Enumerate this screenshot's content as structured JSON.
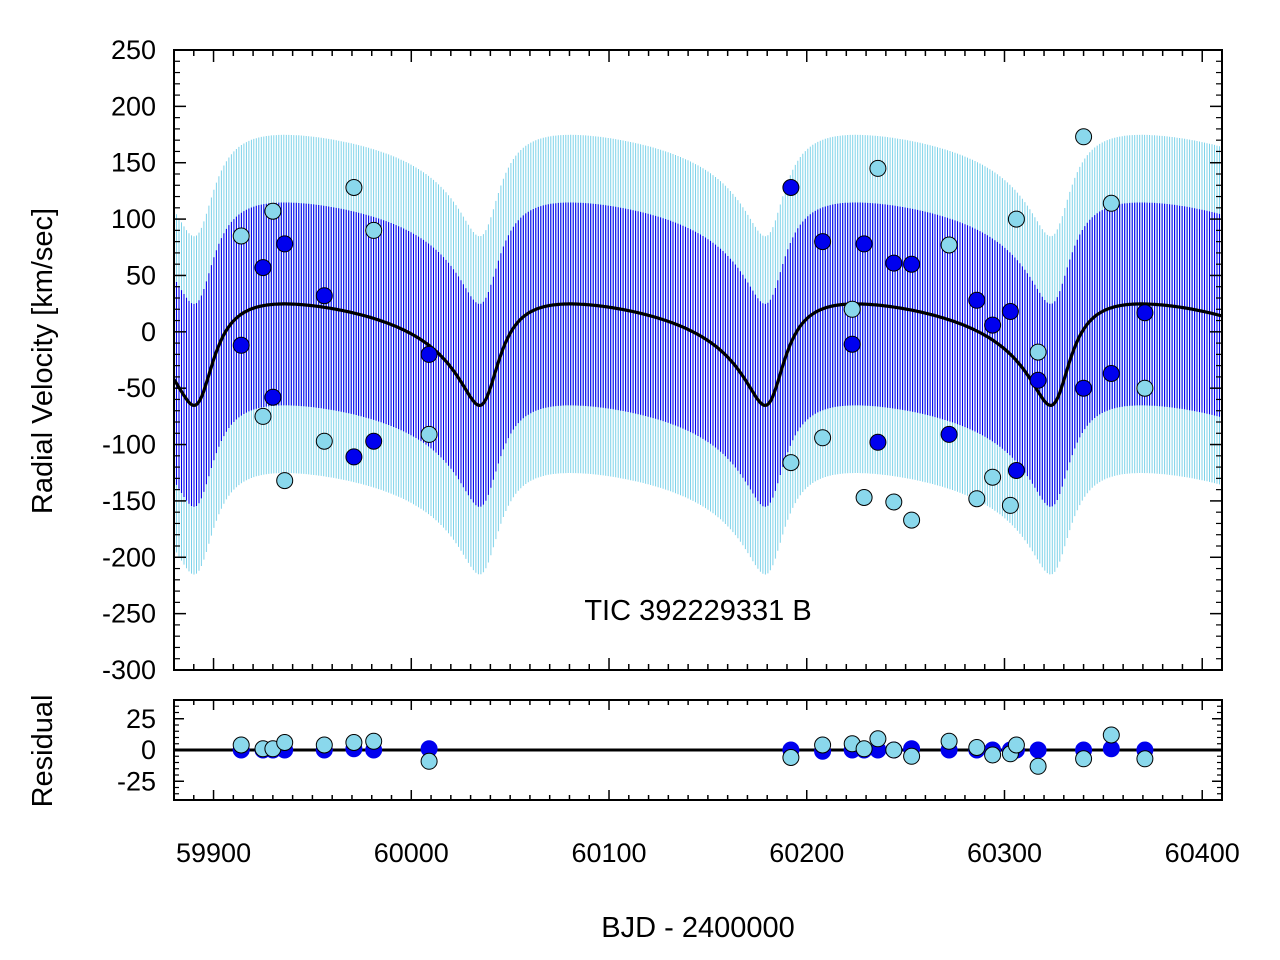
{
  "chart_data": [
    {
      "type": "scatter",
      "panel": "radial-velocity",
      "title": "",
      "annotation": "TIC 392229331 B",
      "xlabel": "BJD - 2400000",
      "ylabel": "Radial Velocity [km/sec]",
      "xlim": [
        59880,
        60410
      ],
      "ylim": [
        -300,
        250
      ],
      "xticks": [
        59900,
        60000,
        60100,
        60200,
        60300,
        60400
      ],
      "yticks": [
        250,
        200,
        150,
        100,
        50,
        0,
        -50,
        -100,
        -150,
        -200,
        -250,
        -300
      ],
      "colors": {
        "inner_band": "#0000ee",
        "outer_band": "#7fd3ea",
        "model_line": "#000000",
        "primary_fill": "#0000ee",
        "secondary_fill": "#8ad8ec",
        "marker_edge": "#000000"
      },
      "model": {
        "name": "orbit model",
        "orbital_period_days": 144.4,
        "eccentricity": 0.52,
        "periastron_time": 59893.5,
        "argument_of_periastron_deg": 210,
        "semi_amplitude_km_s": 45,
        "systemic_velocity_km_s": 0,
        "peak_velocity_km_s": 45,
        "minimum_velocity_km_s": -45,
        "inner_band_halfwidth_km_s": 90,
        "outer_band_halfwidth_km_s": 150,
        "inner_orbit_period_days": 2.3
      },
      "series": [
        {
          "name": "primary",
          "x": [
            59914,
            59925,
            59930,
            59936,
            59956,
            59971,
            59981,
            60009,
            60192,
            60208,
            60223,
            60229,
            60236,
            60244,
            60253,
            60272,
            60286,
            60294,
            60303,
            60306,
            60317,
            60340,
            60354,
            60371
          ],
          "y": [
            -12,
            57,
            -58,
            78,
            32,
            -111,
            -97,
            -20,
            128,
            80,
            -11,
            78,
            -98,
            61,
            60,
            -91,
            28,
            6,
            18,
            -123,
            -43,
            -50,
            -37,
            17
          ]
        },
        {
          "name": "secondary",
          "x": [
            59914,
            59925,
            59930,
            59936,
            59956,
            59971,
            59981,
            60009,
            60192,
            60208,
            60223,
            60229,
            60236,
            60244,
            60253,
            60272,
            60286,
            60294,
            60303,
            60306,
            60317,
            60340,
            60354,
            60371
          ],
          "y": [
            85,
            -75,
            107,
            -132,
            -97,
            128,
            90,
            -91,
            -116,
            -94,
            20,
            -147,
            145,
            -151,
            -167,
            77,
            -148,
            -129,
            -154,
            100,
            -18,
            173,
            114,
            -50
          ]
        }
      ]
    },
    {
      "type": "scatter",
      "panel": "residual",
      "title": "",
      "xlabel": "BJD - 2400000",
      "ylabel": "Residual",
      "xlim": [
        59880,
        60410
      ],
      "ylim": [
        -40,
        40
      ],
      "xticks": [
        59900,
        60000,
        60100,
        60200,
        60300,
        60400
      ],
      "yticks": [
        25,
        0,
        -25
      ],
      "zero_line": 0,
      "series": [
        {
          "name": "primary",
          "x": [
            59914,
            59925,
            59930,
            59936,
            59956,
            59971,
            59981,
            60009,
            60192,
            60208,
            60223,
            60229,
            60236,
            60244,
            60253,
            60272,
            60286,
            60294,
            60303,
            60306,
            60317,
            60340,
            60354,
            60371
          ],
          "y": [
            0,
            0,
            0,
            0,
            0,
            1,
            0,
            1,
            0,
            -1,
            0,
            0,
            0,
            0,
            1,
            0,
            0,
            0,
            0,
            0,
            0,
            0,
            1,
            0
          ]
        },
        {
          "name": "secondary",
          "x": [
            59914,
            59925,
            59930,
            59936,
            59956,
            59971,
            59981,
            60009,
            60192,
            60208,
            60223,
            60229,
            60236,
            60244,
            60253,
            60272,
            60286,
            60294,
            60303,
            60306,
            60317,
            60340,
            60354,
            60371
          ],
          "y": [
            4,
            1,
            1,
            6,
            4,
            6,
            7,
            -9,
            -6,
            4,
            5,
            1,
            9,
            0,
            -5,
            7,
            2,
            -4,
            -3,
            4,
            -13,
            -7,
            12,
            -7
          ]
        }
      ]
    }
  ]
}
